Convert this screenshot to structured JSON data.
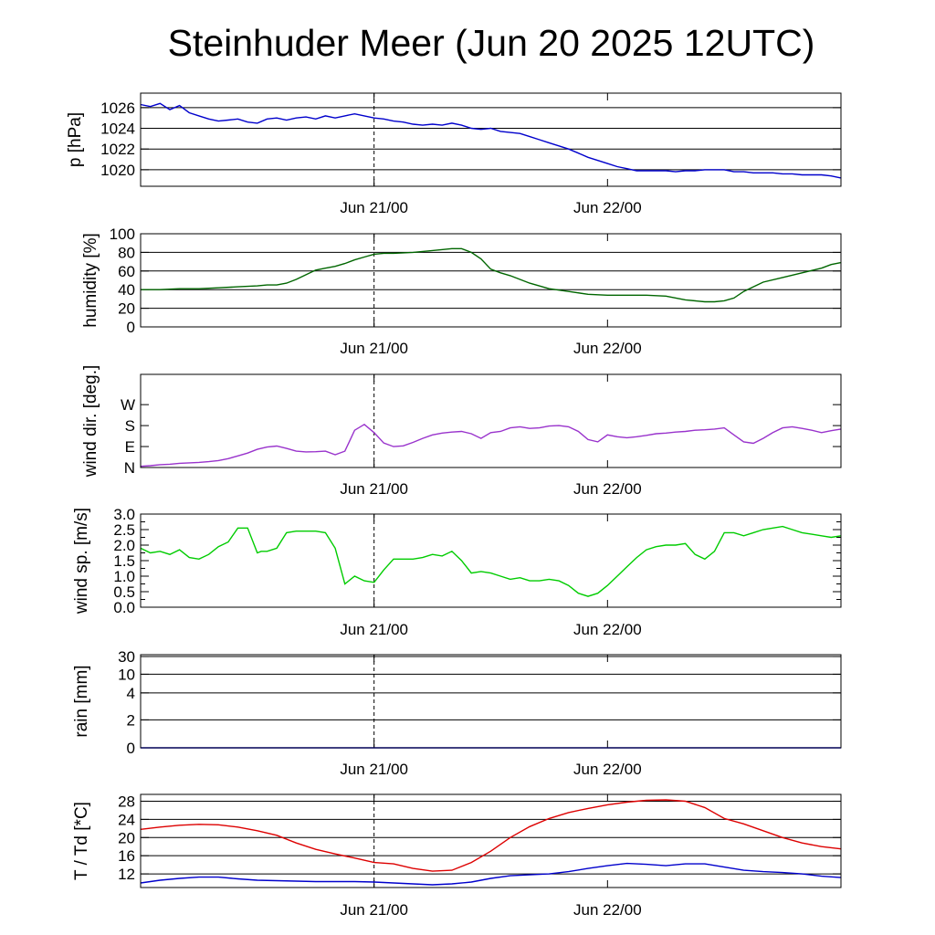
{
  "title": "Steinhuder Meer (Jun 20 2025 12UTC)",
  "x_tick_labels": [
    "Jun 21/00",
    "Jun 22/00"
  ],
  "chart_data": [
    {
      "type": "line",
      "ylabel": "p [hPa]",
      "yticks": [
        1020,
        1022,
        1024,
        1026
      ],
      "ylim": [
        1018.4,
        1027.4
      ],
      "xlim": [
        0,
        36
      ],
      "grid": true,
      "color": "#0000cc",
      "series": [
        {
          "x": [
            0,
            0.5,
            1,
            1.5,
            2,
            2.5,
            3,
            3.5,
            4,
            4.5,
            5,
            5.5,
            6,
            6.5,
            7,
            7.5,
            8,
            8.5,
            9,
            9.5,
            10,
            10.5,
            11,
            11.5,
            12,
            12.5,
            13,
            13.5,
            14,
            14.5,
            15,
            15.5,
            16,
            16.5,
            17,
            17.5,
            18,
            18.5,
            19,
            19.5,
            20,
            20.5,
            21,
            21.5,
            22,
            22.5,
            23,
            23.5,
            24,
            24.5,
            25,
            25.5,
            26,
            26.5,
            27,
            27.5,
            28,
            28.5,
            29,
            29.5,
            30,
            30.5,
            31,
            31.5,
            32,
            32.5,
            33,
            33.5,
            34,
            34.5,
            35,
            35.5,
            36
          ],
          "y": [
            1026.3,
            1026.1,
            1026.4,
            1025.8,
            1026.2,
            1025.5,
            1025.2,
            1024.9,
            1024.7,
            1024.8,
            1024.9,
            1024.6,
            1024.5,
            1024.9,
            1025.0,
            1024.8,
            1025.0,
            1025.1,
            1024.9,
            1025.2,
            1025.0,
            1025.2,
            1025.4,
            1025.2,
            1025.0,
            1024.9,
            1024.7,
            1024.6,
            1024.4,
            1024.3,
            1024.4,
            1024.3,
            1024.5,
            1024.3,
            1024.0,
            1023.9,
            1024.0,
            1023.7,
            1023.6,
            1023.5,
            1023.2,
            1022.9,
            1022.6,
            1022.3,
            1022.0,
            1021.6,
            1021.2,
            1020.9,
            1020.6,
            1020.3,
            1020.1,
            1019.9,
            1019.9,
            1019.9,
            1019.9,
            1019.8,
            1019.9,
            1019.9,
            1020.0,
            1020.0,
            1020.0,
            1019.8,
            1019.8,
            1019.7,
            1019.7,
            1019.7,
            1019.6,
            1019.6,
            1019.5,
            1019.5,
            1019.5,
            1019.4,
            1019.2
          ]
        }
      ]
    },
    {
      "type": "line",
      "ylabel": "humidity [%]",
      "yticks": [
        0,
        20,
        40,
        60,
        80,
        100
      ],
      "ylim": [
        0,
        100
      ],
      "xlim": [
        0,
        36
      ],
      "grid": true,
      "color": "#006600",
      "series": [
        {
          "x": [
            0,
            1,
            2,
            3,
            4,
            5,
            6,
            6.5,
            7,
            7.5,
            8,
            8.5,
            9,
            9.5,
            10,
            10.5,
            11,
            11.5,
            12,
            12.5,
            13,
            14,
            15,
            16,
            16.5,
            17,
            17.5,
            18,
            18.5,
            19,
            20,
            21,
            22,
            23,
            24,
            25,
            26,
            27,
            28,
            29,
            29.5,
            30,
            30.5,
            31,
            31.5,
            32,
            33,
            34,
            35,
            35.5,
            36
          ],
          "y": [
            40,
            40,
            41,
            41,
            42,
            43,
            44,
            45,
            45,
            47,
            51,
            56,
            61,
            63,
            65,
            68,
            72,
            75,
            78,
            79,
            79,
            80,
            82,
            84,
            84,
            80,
            73,
            62,
            58,
            55,
            47,
            41,
            38,
            35,
            34,
            34,
            34,
            33,
            29,
            27,
            27,
            28,
            31,
            38,
            43,
            48,
            53,
            58,
            63,
            67,
            69
          ]
        }
      ]
    },
    {
      "type": "line",
      "ylabel": "wind dir. [deg.]",
      "yticks": [
        "N",
        "E",
        "S",
        "W"
      ],
      "ylim": [
        0,
        400
      ],
      "xlim": [
        0,
        36
      ],
      "grid": false,
      "color": "#9933cc",
      "series": [
        {
          "x": [
            0,
            0.5,
            1,
            1.5,
            2,
            2.5,
            3,
            3.5,
            4,
            4.5,
            5,
            5.5,
            6,
            6.5,
            7,
            7.5,
            8,
            8.5,
            9,
            9.5,
            10,
            10.5,
            11,
            11.5,
            12,
            12.5,
            13,
            13.5,
            14,
            14.5,
            15,
            15.5,
            16,
            16.5,
            17,
            17.5,
            18,
            18.5,
            19,
            19.5,
            20,
            20.5,
            21,
            21.5,
            22,
            22.5,
            23,
            23.5,
            24,
            24.5,
            25,
            25.5,
            26,
            26.5,
            27,
            27.5,
            28,
            28.5,
            29,
            29.5,
            30,
            30.5,
            31,
            31.5,
            32,
            32.5,
            33,
            33.5,
            34,
            34.5,
            35,
            35.5,
            36
          ],
          "y": [
            5,
            8,
            12,
            14,
            18,
            20,
            22,
            25,
            30,
            38,
            50,
            62,
            78,
            88,
            92,
            82,
            70,
            67,
            68,
            70,
            55,
            70,
            160,
            185,
            150,
            105,
            90,
            93,
            108,
            125,
            140,
            148,
            152,
            155,
            145,
            125,
            150,
            155,
            170,
            175,
            168,
            170,
            178,
            180,
            175,
            155,
            120,
            110,
            140,
            132,
            128,
            132,
            138,
            145,
            148,
            152,
            155,
            160,
            162,
            165,
            170,
            140,
            110,
            104,
            125,
            150,
            170,
            175,
            168,
            160,
            150,
            158,
            165
          ]
        }
      ]
    },
    {
      "type": "line",
      "ylabel": "wind sp. [m/s]",
      "yticks": [
        0.0,
        0.5,
        1.0,
        1.5,
        2.0,
        2.5,
        3.0
      ],
      "ylim": [
        0,
        3.0
      ],
      "xlim": [
        0,
        36
      ],
      "grid": false,
      "color": "#00cc00",
      "series": [
        {
          "x": [
            0,
            0.5,
            1,
            1.5,
            2,
            2.5,
            3,
            3.5,
            4,
            4.5,
            5,
            5.5,
            6,
            6.2,
            6.5,
            7,
            7.5,
            8,
            8.5,
            9,
            9.5,
            10,
            10.5,
            11,
            11.5,
            12,
            12.5,
            13,
            13.5,
            14,
            14.5,
            15,
            15.5,
            16,
            16.5,
            17,
            17.5,
            18,
            18.5,
            19,
            19.5,
            20,
            20.5,
            21,
            21.5,
            22,
            22.5,
            23,
            23.5,
            24,
            24.5,
            25,
            25.5,
            26,
            26.5,
            27,
            27.5,
            28,
            28.5,
            29,
            29.5,
            30,
            30.5,
            31,
            31.5,
            32,
            32.5,
            33,
            33.5,
            34,
            34.5,
            35,
            35.5,
            36
          ],
          "y": [
            1.9,
            1.75,
            1.8,
            1.7,
            1.85,
            1.6,
            1.55,
            1.7,
            1.95,
            2.1,
            2.55,
            2.55,
            1.75,
            1.8,
            1.8,
            1.9,
            2.4,
            2.45,
            2.45,
            2.45,
            2.4,
            1.9,
            0.75,
            1.0,
            0.85,
            0.8,
            1.2,
            1.55,
            1.55,
            1.55,
            1.6,
            1.7,
            1.65,
            1.8,
            1.5,
            1.1,
            1.15,
            1.1,
            1.0,
            0.9,
            0.95,
            0.85,
            0.85,
            0.9,
            0.85,
            0.7,
            0.45,
            0.35,
            0.45,
            0.7,
            1.0,
            1.3,
            1.6,
            1.85,
            1.95,
            2.0,
            2.0,
            2.05,
            1.7,
            1.55,
            1.8,
            2.4,
            2.4,
            2.3,
            2.4,
            2.5,
            2.55,
            2.6,
            2.5,
            2.4,
            2.35,
            2.3,
            2.25,
            2.3
          ]
        }
      ]
    },
    {
      "type": "line",
      "ylabel": "rain [mm]",
      "yticks": [
        "0",
        "2",
        "4",
        "10",
        "30"
      ],
      "ylim": [
        0,
        30
      ],
      "xlim": [
        0,
        36
      ],
      "grid": true,
      "color": "#0000ff",
      "series": [
        {
          "x": [
            0,
            36
          ],
          "y": [
            0,
            0
          ]
        }
      ]
    },
    {
      "type": "line",
      "ylabel": "T / Td [*C]",
      "yticks": [
        12,
        16,
        20,
        24,
        28
      ],
      "ylim": [
        9,
        29.5
      ],
      "xlim": [
        0,
        36
      ],
      "grid": true,
      "series": [
        {
          "name": "T",
          "color": "#dd0000",
          "x": [
            0,
            1,
            2,
            3,
            4,
            5,
            6,
            7,
            8,
            9,
            10,
            11,
            12,
            13,
            14,
            15,
            16,
            17,
            18,
            19,
            20,
            21,
            22,
            23,
            24,
            25,
            26,
            27,
            28,
            29,
            30,
            31,
            32,
            33,
            34,
            35,
            36
          ],
          "y": [
            21.8,
            22.3,
            22.7,
            22.9,
            22.8,
            22.3,
            21.5,
            20.5,
            18.8,
            17.4,
            16.4,
            15.5,
            14.5,
            14.2,
            13.2,
            12.6,
            12.8,
            14.5,
            17.0,
            20.0,
            22.4,
            24.2,
            25.5,
            26.4,
            27.2,
            27.8,
            28.2,
            28.3,
            28.0,
            26.6,
            24.2,
            23.0,
            21.5,
            20.0,
            18.8,
            18.0,
            17.5
          ]
        },
        {
          "name": "Td",
          "color": "#0000cc",
          "x": [
            0,
            1,
            2,
            3,
            4,
            5,
            6,
            7,
            8,
            9,
            10,
            11,
            12,
            13,
            14,
            15,
            16,
            17,
            18,
            19,
            20,
            21,
            22,
            23,
            24,
            25,
            26,
            27,
            28,
            29,
            30,
            31,
            32,
            33,
            34,
            35,
            36
          ],
          "y": [
            10.0,
            10.6,
            11.0,
            11.3,
            11.3,
            10.9,
            10.6,
            10.5,
            10.4,
            10.3,
            10.3,
            10.3,
            10.2,
            10.0,
            9.8,
            9.6,
            9.8,
            10.2,
            11.0,
            11.6,
            11.8,
            12.0,
            12.5,
            13.2,
            13.8,
            14.3,
            14.1,
            13.8,
            14.2,
            14.2,
            13.5,
            12.8,
            12.5,
            12.3,
            12.0,
            11.5,
            11.2
          ]
        }
      ]
    }
  ]
}
